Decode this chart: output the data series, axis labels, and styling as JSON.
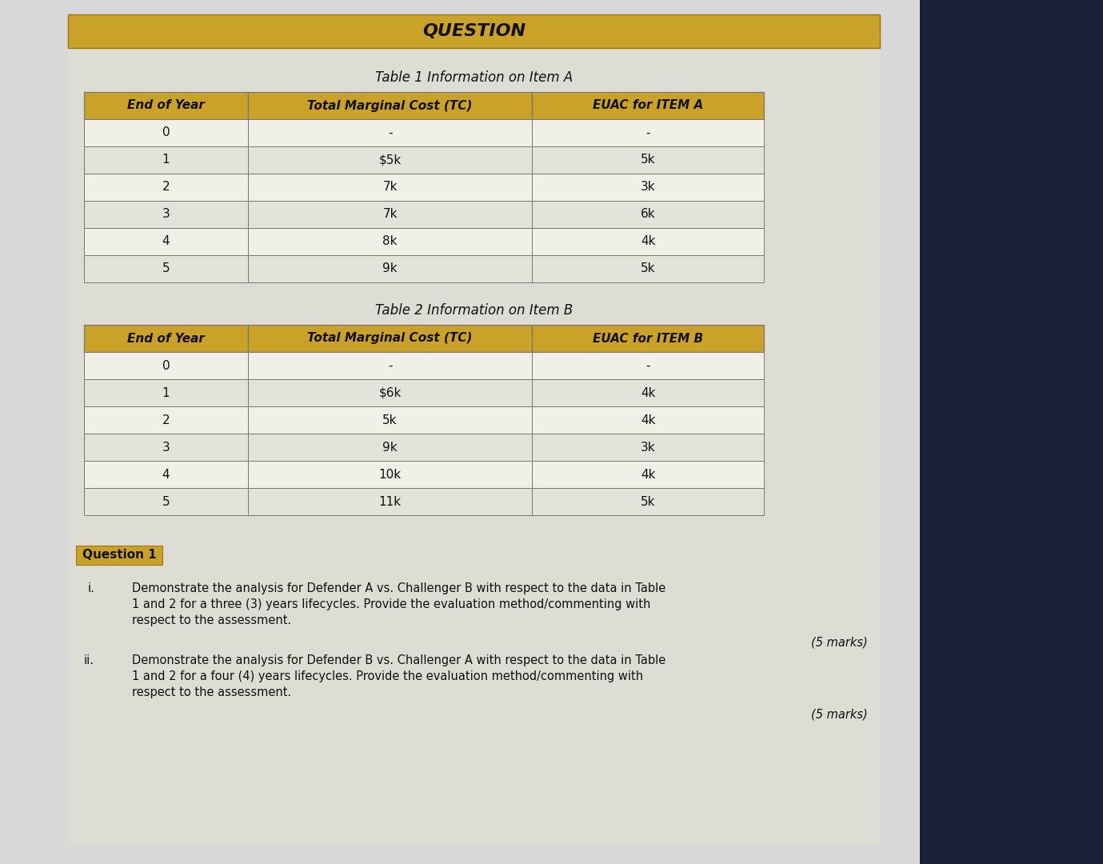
{
  "title_banner": "QUESTION",
  "title_banner_bg": "#C9A227",
  "title_banner_text_color": "#111111",
  "page_bg_left": "#d8d8d8",
  "page_bg_right": "#1a2035",
  "content_bg": "#e0dfd8",
  "table1_title": "Table 1 Information on Item A",
  "table1_headers": [
    "End of Year",
    "Total Marginal Cost (TC)",
    "EUAC for ITEM A"
  ],
  "table1_data": [
    [
      "0",
      "-",
      "-"
    ],
    [
      "1",
      "$5k",
      "5k"
    ],
    [
      "2",
      "7k",
      "3k"
    ],
    [
      "3",
      "7k",
      "6k"
    ],
    [
      "4",
      "8k",
      "4k"
    ],
    [
      "5",
      "9k",
      "5k"
    ]
  ],
  "table2_title": "Table 2 Information on Item B",
  "table2_headers": [
    "End of Year",
    "Total Marginal Cost (TC)",
    "EUAC for ITEM B"
  ],
  "table2_data": [
    [
      "0",
      "-",
      "-"
    ],
    [
      "1",
      "$6k",
      "4k"
    ],
    [
      "2",
      "5k",
      "4k"
    ],
    [
      "3",
      "9k",
      "3k"
    ],
    [
      "4",
      "10k",
      "4k"
    ],
    [
      "5",
      "11k",
      "5k"
    ]
  ],
  "header_bg": "#C9A227",
  "header_text_color": "#111111",
  "row_bg_light": "#f0efe8",
  "row_bg_dark": "#e4e3db",
  "cell_text_color": "#111111",
  "table_border_color": "#777777",
  "question_label": "Question 1",
  "question_label_bg": "#C9A227",
  "question_label_text_color": "#111111",
  "q1_i_prefix": "i.",
  "q1_i_line1": "Demonstrate the analysis for Defender A vs. Challenger B with respect to the data in Table",
  "q1_i_line2": "1 and 2 for a three (3) years lifecycles. Provide the evaluation method/commenting with",
  "q1_i_line3": "respect to the assessment.",
  "q1_marks_i": "(5 marks)",
  "q1_ii_prefix": "ii.",
  "q1_ii_line1": "Demonstrate the analysis for Defender B vs. Challenger A with respect to the data in Table",
  "q1_ii_line2": "1 and 2 for a four (4) years lifecycles. Provide the evaluation method/commenting with",
  "q1_ii_line3": "respect to the assessment.",
  "q1_marks_ii": "(5 marks)"
}
